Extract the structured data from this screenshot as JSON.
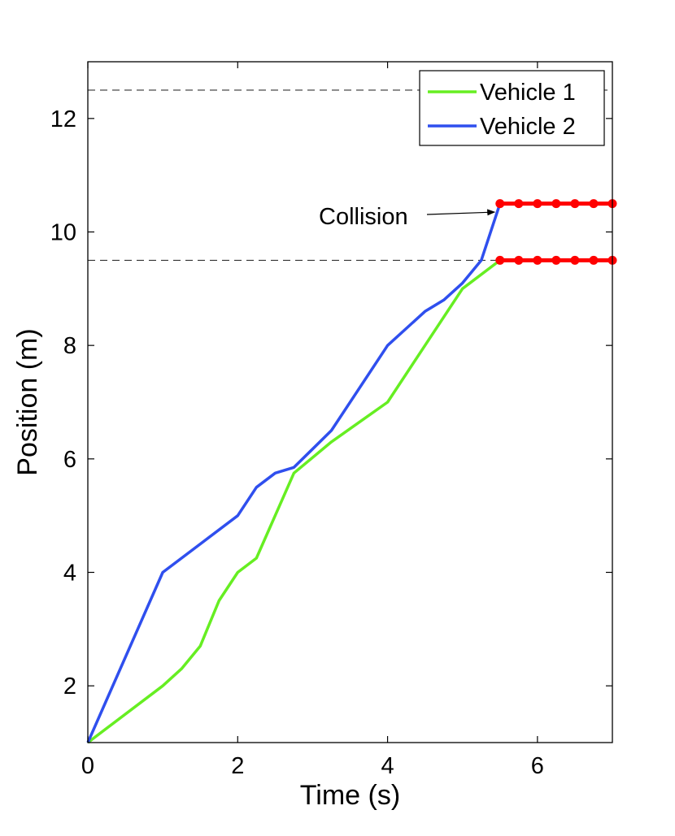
{
  "chart_data": {
    "type": "line",
    "xlabel": "Time (s)",
    "ylabel": "Position (m)",
    "xlim": [
      0,
      7
    ],
    "ylim": [
      1,
      13
    ],
    "xticks": [
      0,
      2,
      4,
      6
    ],
    "yticks": [
      2,
      4,
      6,
      8,
      10,
      12
    ],
    "grid": false,
    "legend_position": "top-right",
    "reference_lines": [
      12.5,
      9.5
    ],
    "series": [
      {
        "name": "Vehicle 1",
        "color": "#66ee22",
        "x": [
          0,
          1,
          1.25,
          1.5,
          1.75,
          2,
          2.25,
          2.75,
          3.25,
          4,
          4.5,
          5,
          5.5
        ],
        "y": [
          1,
          2,
          2.3,
          2.7,
          3.5,
          4,
          4.25,
          5.75,
          6.3,
          7,
          8,
          9,
          9.5
        ]
      },
      {
        "name": "Vehicle 2",
        "color": "#2f4fee",
        "x": [
          0,
          1,
          1.5,
          2,
          2.25,
          2.5,
          2.75,
          3.25,
          4,
          4.5,
          4.75,
          5,
          5.25,
          5.5
        ],
        "y": [
          1,
          4,
          4.5,
          5,
          5.5,
          5.75,
          5.85,
          6.5,
          8,
          8.6,
          8.8,
          9.1,
          9.5,
          10.5
        ]
      }
    ],
    "stopped_segments": [
      {
        "y": 10.5,
        "x": [
          5.5,
          5.75,
          6,
          6.25,
          6.5,
          6.75,
          7
        ],
        "color": "#ff0000"
      },
      {
        "y": 9.5,
        "x": [
          5.5,
          5.75,
          6,
          6.25,
          6.5,
          6.75,
          7
        ],
        "color": "#ff0000"
      }
    ],
    "annotation": {
      "text": "Collision",
      "target": [
        5.45,
        10.35
      ]
    }
  }
}
